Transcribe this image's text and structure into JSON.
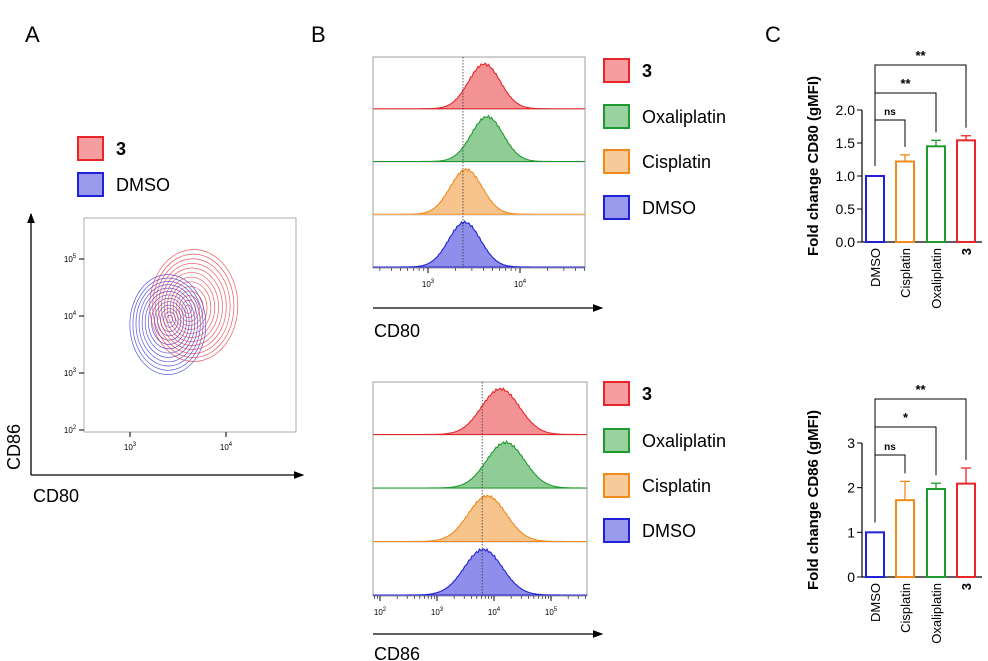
{
  "colors": {
    "3": "#e8262a",
    "Oxaliplatin": "#1f9a2e",
    "Cisplatin": "#f08a1c",
    "DMSO": "#2020d8",
    "axis": "#000000"
  },
  "panel_labels": [
    "A",
    "B",
    "C"
  ],
  "panel_a": {
    "legend": [
      {
        "label": "3",
        "color": "#e8262a",
        "bold": true
      },
      {
        "label": "DMSO",
        "color": "#2020d8",
        "bold": false
      }
    ],
    "xlabel": "CD80",
    "ylabel": "CD86",
    "xticks": [
      {
        "base": "10",
        "exp": "3",
        "value": 1000
      },
      {
        "base": "10",
        "exp": "4",
        "value": 10000
      }
    ],
    "yticks": [
      {
        "base": "10",
        "exp": "2",
        "value": 100
      },
      {
        "base": "10",
        "exp": "3",
        "value": 1000
      },
      {
        "base": "10",
        "exp": "4",
        "value": 10000
      },
      {
        "base": "10",
        "exp": "5",
        "value": 100000
      }
    ]
  },
  "chart_data": [
    {
      "type": "contour",
      "panel": "A",
      "xlabel": "CD80",
      "ylabel": "CD86",
      "scale": "log",
      "series": [
        {
          "name": "3",
          "center": [
            4000,
            13000
          ],
          "color": "#e8262a"
        },
        {
          "name": "DMSO",
          "center": [
            2600,
            9000
          ],
          "color": "#2020d8"
        }
      ]
    },
    {
      "type": "histogram",
      "panel": "B-top",
      "xlabel": "CD80",
      "scale": "log",
      "xticks": [
        {
          "base": "10",
          "exp": "3",
          "value": 1000
        },
        {
          "base": "10",
          "exp": "4",
          "value": 10000
        }
      ],
      "reference_line": 2400,
      "series": [
        {
          "name": "3",
          "peak": 4100,
          "color": "#e8262a"
        },
        {
          "name": "Oxaliplatin",
          "peak": 4400,
          "color": "#1f9a2e"
        },
        {
          "name": "Cisplatin",
          "peak": 2600,
          "color": "#f08a1c"
        },
        {
          "name": "DMSO",
          "peak": 2500,
          "color": "#2020d8"
        }
      ]
    },
    {
      "type": "histogram",
      "panel": "B-bottom",
      "xlabel": "CD86",
      "scale": "log",
      "xticks": [
        {
          "base": "10",
          "exp": "2",
          "value": 100
        },
        {
          "base": "10",
          "exp": "3",
          "value": 1000
        },
        {
          "base": "10",
          "exp": "4",
          "value": 10000
        },
        {
          "base": "10",
          "exp": "5",
          "value": 100000
        }
      ],
      "reference_line": 6200,
      "series": [
        {
          "name": "3",
          "peak": 13000,
          "color": "#e8262a"
        },
        {
          "name": "Oxaliplatin",
          "peak": 16000,
          "color": "#1f9a2e"
        },
        {
          "name": "Cisplatin",
          "peak": 7600,
          "color": "#f08a1c"
        },
        {
          "name": "DMSO",
          "peak": 6500,
          "color": "#2020d8"
        }
      ]
    },
    {
      "type": "bar",
      "panel": "C-top",
      "categories": [
        "DMSO",
        "Cisplatin",
        "Oxaliplatin",
        "3"
      ],
      "values": [
        1.0,
        1.22,
        1.45,
        1.54
      ],
      "errors": [
        0,
        0.1,
        0.09,
        0.07
      ],
      "ylabel": "Fold change CD80 (gMFI)",
      "ylim": [
        0,
        2.0
      ],
      "yticks": [
        "0.0",
        "0.5",
        "1.0",
        "1.5",
        "2.0"
      ],
      "significance": [
        {
          "from": "DMSO",
          "to": "Cisplatin",
          "label": "ns"
        },
        {
          "from": "DMSO",
          "to": "Oxaliplatin",
          "label": "**"
        },
        {
          "from": "DMSO",
          "to": "3",
          "label": "**"
        }
      ]
    },
    {
      "type": "bar",
      "panel": "C-bottom",
      "categories": [
        "DMSO",
        "Cisplatin",
        "Oxaliplatin",
        "3"
      ],
      "values": [
        1.0,
        1.72,
        1.97,
        2.09
      ],
      "errors": [
        0,
        0.42,
        0.13,
        0.35
      ],
      "ylabel": "Fold change CD86 (gMFI)",
      "ylim": [
        0,
        3
      ],
      "yticks": [
        "0",
        "1",
        "2",
        "3"
      ],
      "significance": [
        {
          "from": "DMSO",
          "to": "Cisplatin",
          "label": "ns"
        },
        {
          "from": "DMSO",
          "to": "Oxaliplatin",
          "label": "*"
        },
        {
          "from": "DMSO",
          "to": "3",
          "label": "**"
        }
      ]
    }
  ]
}
